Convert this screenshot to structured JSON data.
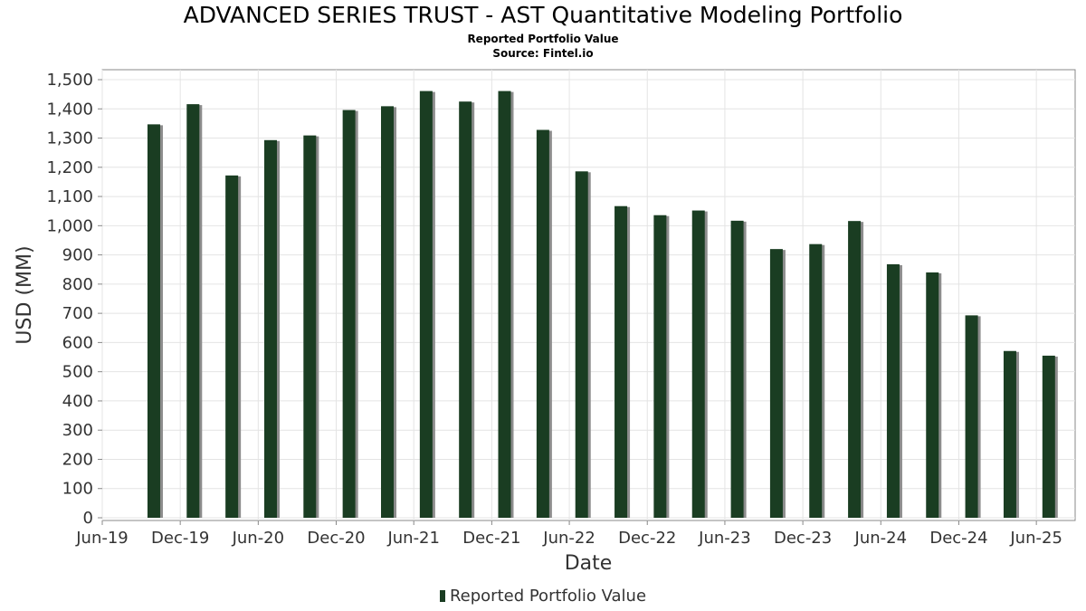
{
  "chart_data": {
    "type": "bar",
    "title": "ADVANCED SERIES TRUST - AST Quantitative Modeling Portfolio",
    "subtitle": "Reported Portfolio Value",
    "source": "Source: Fintel.io",
    "xlabel": "Date",
    "ylabel": "USD (MM)",
    "ylim": [
      0,
      1500
    ],
    "yticks": [
      0,
      100,
      200,
      300,
      400,
      500,
      600,
      700,
      800,
      900,
      1000,
      1100,
      1200,
      1300,
      1400,
      1500
    ],
    "ytick_labels": [
      "0",
      "100",
      "200",
      "300",
      "400",
      "500",
      "600",
      "700",
      "800",
      "900",
      "1,000",
      "1,100",
      "1,200",
      "1,300",
      "1,400",
      "1,500"
    ],
    "xlim": [
      "2019-06-01",
      "2025-08-31"
    ],
    "xticks": [
      "2019-06-01",
      "2019-12-01",
      "2020-06-01",
      "2020-12-01",
      "2021-06-01",
      "2021-12-01",
      "2022-06-01",
      "2022-12-01",
      "2023-06-01",
      "2023-12-01",
      "2024-06-01",
      "2024-12-01",
      "2025-06-01"
    ],
    "xtick_labels": [
      "Jun-19",
      "Dec-19",
      "Jun-20",
      "Dec-20",
      "Jun-21",
      "Dec-21",
      "Jun-22",
      "Dec-22",
      "Jun-23",
      "Dec-23",
      "Jun-24",
      "Dec-24",
      "Jun-25"
    ],
    "grid": true,
    "legend_position": "bottom-center",
    "series": [
      {
        "name": "Reported Portfolio Value",
        "color": "#1a3d22",
        "x": [
          "2019-09-30",
          "2019-12-31",
          "2020-03-31",
          "2020-06-30",
          "2020-09-30",
          "2020-12-31",
          "2021-03-31",
          "2021-06-30",
          "2021-09-30",
          "2021-12-31",
          "2022-03-31",
          "2022-06-30",
          "2022-09-30",
          "2022-12-31",
          "2023-03-31",
          "2023-06-30",
          "2023-09-30",
          "2023-12-31",
          "2024-03-31",
          "2024-06-30",
          "2024-09-30",
          "2024-12-31",
          "2025-03-31",
          "2025-06-30"
        ],
        "values": [
          1347,
          1416,
          1172,
          1293,
          1309,
          1396,
          1409,
          1461,
          1425,
          1461,
          1328,
          1186,
          1067,
          1036,
          1052,
          1017,
          920,
          937,
          1016,
          868,
          840,
          693,
          571,
          555
        ]
      }
    ]
  }
}
